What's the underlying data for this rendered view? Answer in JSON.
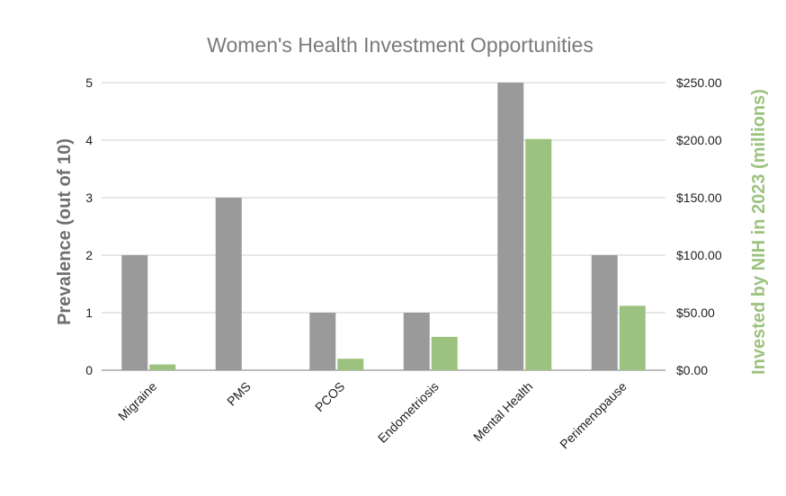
{
  "chart_data": {
    "type": "bar",
    "title": "Women's Health Investment Opportunities",
    "categories": [
      "Migraine",
      "PMS",
      "PCOS",
      "Endometriosis",
      "Mental Health",
      "Perimenopause"
    ],
    "series": [
      {
        "values": [
          2,
          3,
          1,
          1,
          5,
          2
        ],
        "color": "#9a9a9a",
        "axis": "left"
      },
      {
        "values": [
          5,
          0,
          10,
          29,
          201,
          56
        ],
        "color": "#9cc27f",
        "axis": "right"
      }
    ],
    "ylabel": "Prevalence (out of 10)",
    "ylabel_right": "Invested by NIH in 2023 (millions)",
    "ylim": [
      0,
      5
    ],
    "ylim_right": [
      0,
      250
    ],
    "yticks": [
      "0",
      "1",
      "2",
      "3",
      "4",
      "5"
    ],
    "yticks_right": [
      "$0.00",
      "$50.00",
      "$100.00",
      "$150.00",
      "$200.00",
      "$250.00"
    ],
    "grid": true,
    "legend": "none"
  }
}
